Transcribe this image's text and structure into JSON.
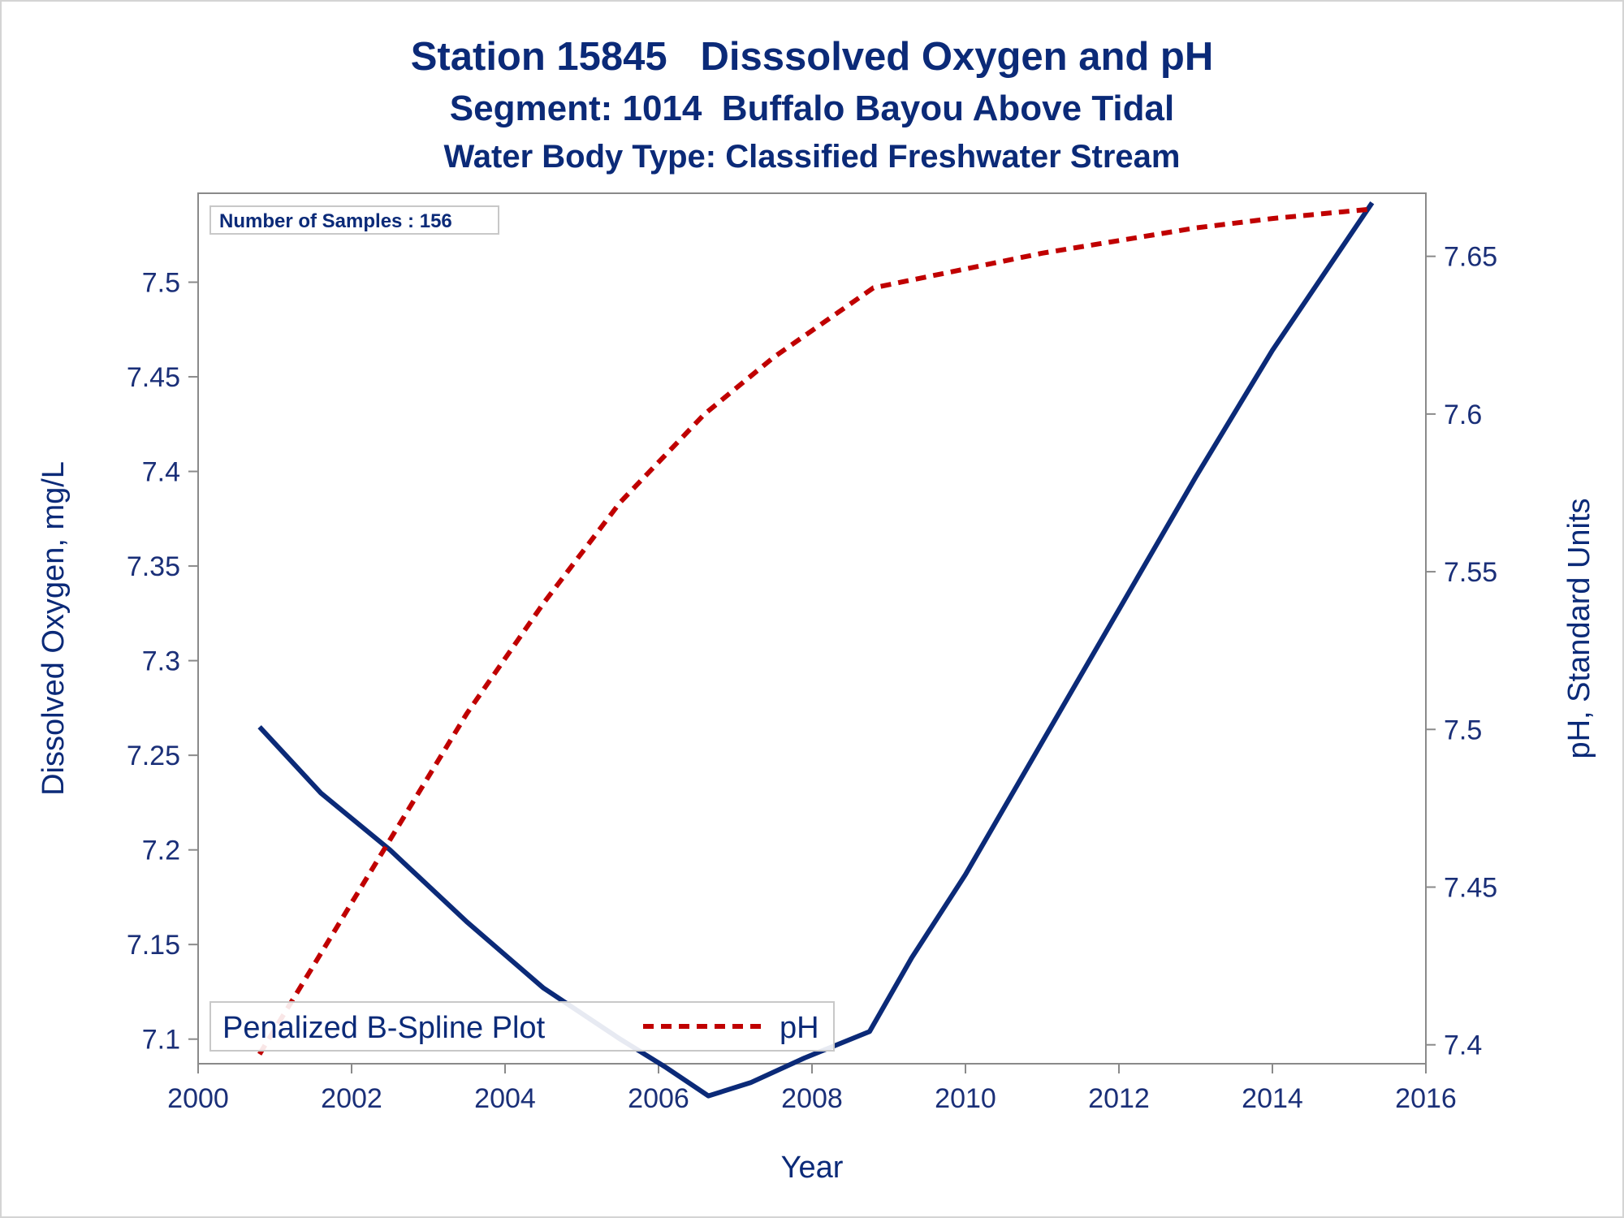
{
  "chart_data": {
    "type": "line",
    "title": "Station 15845   Disssolved Oxygen and pH",
    "subtitle": "Segment: 1014  Buffalo Bayou Above Tidal",
    "subtitle2": "Water Body Type: Classified Freshwater Stream",
    "xlabel": "Year",
    "ylabel_left": "Dissolved Oxygen, mg/L",
    "ylabel_right": "pH, Standard Units",
    "xlim": [
      2000,
      2016
    ],
    "ylim_left": [
      7.087,
      7.547
    ],
    "ylim_right": [
      7.394,
      7.67
    ],
    "x_ticks": [
      "2000",
      "2002",
      "2004",
      "2006",
      "2008",
      "2010",
      "2012",
      "2014",
      "2016"
    ],
    "y_left_ticks": [
      "7.1",
      "7.15",
      "7.2",
      "7.25",
      "7.3",
      "7.35",
      "7.4",
      "7.45",
      "7.5"
    ],
    "y_right_ticks": [
      "7.4",
      "7.45",
      "7.5",
      "7.55",
      "7.6",
      "7.65"
    ],
    "grid": false,
    "annotation": "Number of Samples : 156",
    "legend": {
      "position": "bottom-left",
      "title": "Penalized B-Spline Plot",
      "entries": [
        "pH"
      ]
    },
    "series": [
      {
        "name": "",
        "axis": "left",
        "color": "#0b2a78",
        "style": "solid",
        "x": [
          2000.8,
          2001.6,
          2002.5,
          2003.5,
          2004.5,
          2005.5,
          2006.1,
          2006.65,
          2007.2,
          2007.9,
          2008.75,
          2009.3,
          2010.0,
          2011.0,
          2012.0,
          2013.0,
          2014.0,
          2015.3
        ],
        "y": [
          7.265,
          7.23,
          7.2,
          7.162,
          7.127,
          7.1,
          7.085,
          7.07,
          7.077,
          7.09,
          7.104,
          7.143,
          7.187,
          7.257,
          7.327,
          7.397,
          7.464,
          7.542
        ]
      },
      {
        "name": "pH",
        "axis": "right",
        "color": "#c00000",
        "style": "dashed",
        "x": [
          2000.8,
          2001.5,
          2002.5,
          2003.5,
          2004.5,
          2005.5,
          2006.6,
          2007.5,
          2008.8,
          2010.0,
          2011.0,
          2012.0,
          2013.0,
          2014.0,
          2015.3
        ],
        "y": [
          7.397,
          7.425,
          7.465,
          7.505,
          7.54,
          7.572,
          7.6,
          7.618,
          7.64,
          7.646,
          7.651,
          7.655,
          7.659,
          7.662,
          7.665
        ]
      }
    ]
  }
}
